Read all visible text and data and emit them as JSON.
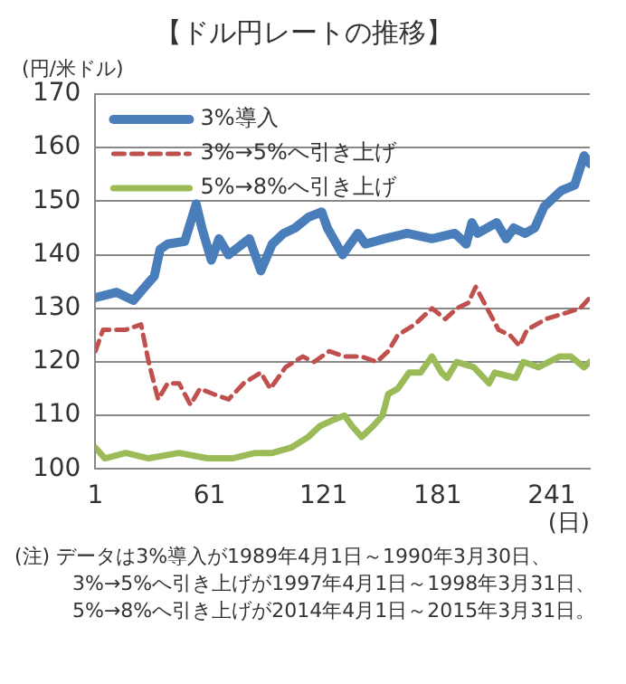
{
  "chart_data": {
    "type": "line",
    "title": "【ドル円レートの推移】",
    "ylabel": "(円/米ドル)",
    "xlabel": "(日)",
    "xlim": [
      1,
      261
    ],
    "xticks": [
      1,
      61,
      121,
      181,
      241
    ],
    "ylim": [
      100,
      170
    ],
    "yticks": [
      100,
      110,
      120,
      130,
      140,
      150,
      160,
      170
    ],
    "grid": "y",
    "legend": "top left",
    "marker": "none",
    "series": [
      {
        "name": "3%導入",
        "color": "#4a7ebb",
        "line_style": "solid",
        "x": [
          1,
          12,
          21,
          27,
          32,
          35,
          39,
          48,
          54,
          57,
          62,
          66,
          71,
          82,
          88,
          94,
          100,
          106,
          113,
          120,
          123,
          131,
          139,
          143,
          153,
          165,
          178,
          190,
          196,
          199,
          202,
          212,
          217,
          221,
          227,
          232,
          237,
          246,
          253,
          258,
          261
        ],
        "values": [
          132,
          133,
          131.5,
          134,
          136,
          141,
          142,
          142.5,
          149.5,
          145,
          139,
          143,
          140,
          143,
          137,
          142,
          144,
          145,
          147,
          148,
          145,
          140,
          144,
          142,
          143,
          144,
          143,
          144,
          142,
          146,
          144,
          146,
          143,
          145,
          144,
          145,
          149,
          152,
          153,
          158.5,
          157
        ]
      },
      {
        "name": "3%→5%へ引き上げ",
        "color": "#c0504d",
        "line_style": "dashed",
        "x": [
          1,
          5,
          17,
          25,
          29,
          34,
          39,
          45,
          51,
          56,
          63,
          71,
          79,
          88,
          93,
          101,
          110,
          116,
          124,
          132,
          141,
          149,
          155,
          160,
          169,
          178,
          185,
          191,
          197,
          201,
          207,
          213,
          219,
          224,
          228,
          238,
          247,
          256,
          261
        ],
        "values": [
          122,
          126,
          126,
          127,
          120,
          113,
          116,
          116,
          112,
          115,
          114,
          113,
          116,
          118,
          115,
          119,
          121,
          120,
          122,
          121,
          121,
          120,
          122,
          125,
          127,
          130,
          128,
          130,
          131,
          134,
          130,
          126,
          125,
          123,
          126,
          128,
          129,
          130,
          132
        ]
      },
      {
        "name": "5%→8%へ引き上げ",
        "color": "#9bbb59",
        "line_style": "solid",
        "x": [
          1,
          6,
          17,
          29,
          45,
          60,
          73,
          85,
          94,
          104,
          113,
          119,
          125,
          132,
          136,
          141,
          147,
          152,
          155,
          160,
          166,
          172,
          178,
          183,
          186,
          191,
          200,
          208,
          211,
          222,
          226,
          234,
          245,
          251,
          258,
          261
        ],
        "values": [
          104,
          102,
          103,
          102,
          103,
          102,
          102,
          103,
          103,
          104,
          106,
          108,
          109,
          110,
          108,
          106,
          108,
          110,
          114,
          115,
          118,
          118,
          121,
          118,
          117,
          120,
          119,
          116,
          118,
          117,
          120,
          119,
          121,
          121,
          119,
          120
        ]
      }
    ],
    "annotations": [
      "(注) データは3%導入が1989年4月1日～1990年3月30日、",
      "3%→5%へ引き上げが1997年4月1日～1998年3月31日、",
      "5%→8%へ引き上げが2014年4月1日～2015年3月31日。"
    ]
  }
}
